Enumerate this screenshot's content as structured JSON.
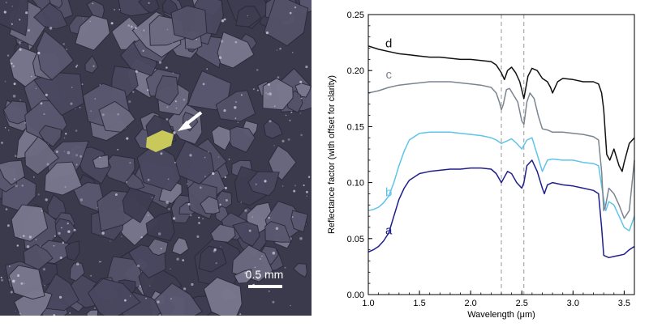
{
  "photo": {
    "scale_bar_label": "0.5 mm",
    "background_color": "#3b3a4c",
    "grain_color": "#5a5870",
    "highlight_grain_color": "#c8c95a",
    "arrow_color": "#ffffff"
  },
  "chart_data": {
    "type": "line",
    "title": "",
    "xlabel": "Wavelength (μm)",
    "ylabel": "Reflectance factor (with offset for clarity)",
    "xlim": [
      1.0,
      3.6
    ],
    "ylim": [
      0.0,
      0.25
    ],
    "x_ticks": [
      1.0,
      1.5,
      2.0,
      2.5,
      3.0,
      3.5
    ],
    "x_tick_labels": [
      "1.0",
      "1.5",
      "2.0",
      "2.5",
      "3.0",
      "3.5"
    ],
    "y_ticks": [
      0.0,
      0.05,
      0.1,
      0.15,
      0.2,
      0.25
    ],
    "y_tick_labels": [
      "0.00",
      "0.05",
      "0.10",
      "0.15",
      "0.20",
      "0.25"
    ],
    "grid": false,
    "legend": "none",
    "reference_lines_x": [
      2.3,
      2.52
    ],
    "series": [
      {
        "name": "a",
        "color": "#1f1f8c",
        "x": [
          1.0,
          1.05,
          1.1,
          1.15,
          1.2,
          1.25,
          1.3,
          1.35,
          1.4,
          1.5,
          1.6,
          1.7,
          1.8,
          1.9,
          2.0,
          2.1,
          2.2,
          2.25,
          2.3,
          2.33,
          2.36,
          2.4,
          2.45,
          2.5,
          2.52,
          2.55,
          2.6,
          2.65,
          2.7,
          2.72,
          2.75,
          2.8,
          2.9,
          3.0,
          3.1,
          3.2,
          3.25,
          3.28,
          3.3,
          3.35,
          3.4,
          3.45,
          3.5,
          3.55,
          3.6
        ],
        "values": [
          0.038,
          0.04,
          0.043,
          0.048,
          0.055,
          0.07,
          0.085,
          0.095,
          0.102,
          0.108,
          0.11,
          0.111,
          0.112,
          0.112,
          0.113,
          0.113,
          0.112,
          0.108,
          0.1,
          0.105,
          0.11,
          0.108,
          0.1,
          0.095,
          0.1,
          0.115,
          0.12,
          0.11,
          0.095,
          0.09,
          0.098,
          0.1,
          0.098,
          0.097,
          0.095,
          0.093,
          0.09,
          0.06,
          0.035,
          0.033,
          0.034,
          0.035,
          0.036,
          0.04,
          0.043
        ]
      },
      {
        "name": "b",
        "color": "#5fc4e8",
        "x": [
          1.0,
          1.05,
          1.1,
          1.15,
          1.2,
          1.25,
          1.3,
          1.35,
          1.4,
          1.5,
          1.6,
          1.7,
          1.8,
          1.9,
          2.0,
          2.1,
          2.2,
          2.25,
          2.3,
          2.35,
          2.4,
          2.45,
          2.5,
          2.55,
          2.6,
          2.65,
          2.7,
          2.75,
          2.8,
          2.9,
          3.0,
          3.1,
          3.2,
          3.25,
          3.3,
          3.32,
          3.35,
          3.4,
          3.45,
          3.5,
          3.55,
          3.6
        ],
        "values": [
          0.075,
          0.076,
          0.078,
          0.082,
          0.088,
          0.1,
          0.115,
          0.128,
          0.138,
          0.144,
          0.145,
          0.145,
          0.145,
          0.144,
          0.143,
          0.142,
          0.14,
          0.138,
          0.135,
          0.137,
          0.139,
          0.135,
          0.13,
          0.138,
          0.14,
          0.125,
          0.11,
          0.12,
          0.121,
          0.12,
          0.12,
          0.118,
          0.117,
          0.115,
          0.085,
          0.075,
          0.083,
          0.08,
          0.07,
          0.06,
          0.057,
          0.07
        ]
      },
      {
        "name": "c",
        "color": "#7a8590",
        "x": [
          1.0,
          1.1,
          1.2,
          1.3,
          1.4,
          1.5,
          1.6,
          1.7,
          1.8,
          1.9,
          2.0,
          2.1,
          2.2,
          2.25,
          2.28,
          2.3,
          2.32,
          2.35,
          2.38,
          2.42,
          2.46,
          2.5,
          2.52,
          2.55,
          2.58,
          2.62,
          2.66,
          2.7,
          2.75,
          2.8,
          2.9,
          3.0,
          3.1,
          3.2,
          3.25,
          3.28,
          3.3,
          3.32,
          3.35,
          3.4,
          3.45,
          3.5,
          3.55,
          3.6
        ],
        "values": [
          0.18,
          0.182,
          0.185,
          0.187,
          0.188,
          0.189,
          0.19,
          0.19,
          0.19,
          0.189,
          0.188,
          0.187,
          0.185,
          0.18,
          0.172,
          0.165,
          0.17,
          0.183,
          0.184,
          0.178,
          0.172,
          0.155,
          0.152,
          0.172,
          0.18,
          0.175,
          0.16,
          0.148,
          0.147,
          0.145,
          0.145,
          0.144,
          0.143,
          0.141,
          0.138,
          0.11,
          0.075,
          0.08,
          0.095,
          0.09,
          0.08,
          0.068,
          0.075,
          0.12
        ]
      },
      {
        "name": "d",
        "color": "#111111",
        "x": [
          1.0,
          1.1,
          1.2,
          1.3,
          1.4,
          1.5,
          1.6,
          1.7,
          1.8,
          1.9,
          2.0,
          2.1,
          2.2,
          2.25,
          2.3,
          2.33,
          2.36,
          2.4,
          2.44,
          2.48,
          2.52,
          2.56,
          2.6,
          2.65,
          2.7,
          2.75,
          2.78,
          2.8,
          2.85,
          2.9,
          3.0,
          3.1,
          3.2,
          3.25,
          3.28,
          3.3,
          3.33,
          3.36,
          3.4,
          3.45,
          3.48,
          3.5,
          3.55,
          3.6
        ],
        "values": [
          0.222,
          0.219,
          0.217,
          0.215,
          0.214,
          0.213,
          0.212,
          0.212,
          0.211,
          0.21,
          0.21,
          0.209,
          0.208,
          0.205,
          0.198,
          0.192,
          0.2,
          0.203,
          0.198,
          0.19,
          0.175,
          0.195,
          0.202,
          0.2,
          0.193,
          0.19,
          0.185,
          0.18,
          0.19,
          0.193,
          0.192,
          0.19,
          0.19,
          0.188,
          0.18,
          0.165,
          0.125,
          0.12,
          0.13,
          0.115,
          0.11,
          0.118,
          0.135,
          0.14
        ]
      }
    ]
  }
}
